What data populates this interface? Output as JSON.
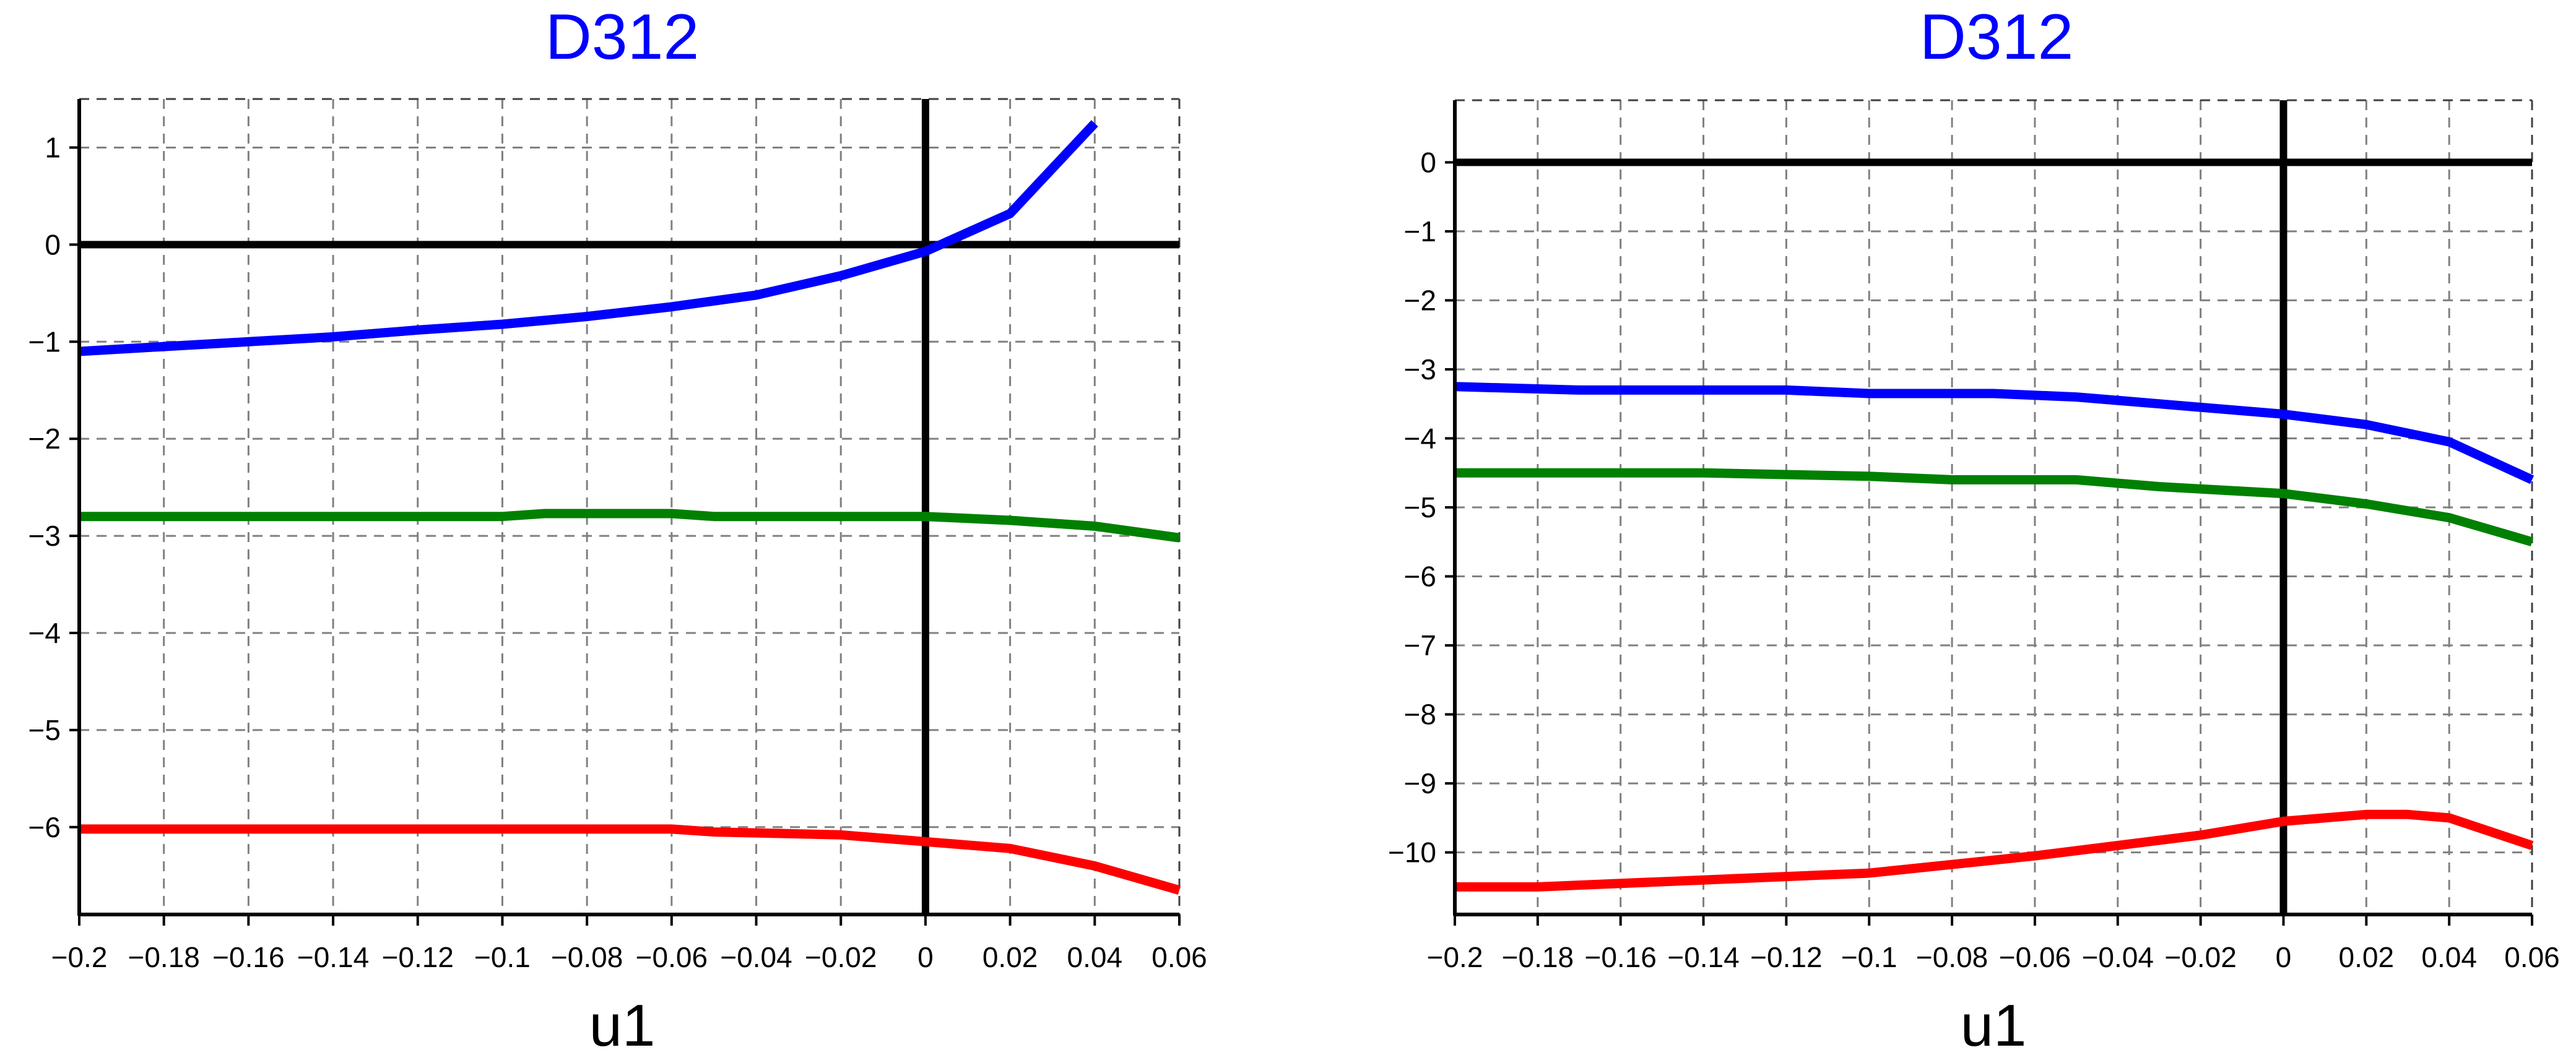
{
  "chart_data": [
    {
      "type": "line",
      "title": "D312",
      "xlabel": "u1",
      "ylabel": "",
      "xlim": [
        -0.2,
        0.06
      ],
      "ylim": [
        -6.9,
        1.5
      ],
      "grid": true,
      "x_ticks": [
        "−0.2",
        "−0.18",
        "−0.16",
        "−0.14",
        "−0.12",
        "−0.1",
        "−0.08",
        "−0.06",
        "−0.04",
        "−0.02",
        "0",
        "0.02",
        "0.04",
        "0.06"
      ],
      "x_tick_values": [
        -0.2,
        -0.18,
        -0.16,
        -0.14,
        -0.12,
        -0.1,
        -0.08,
        -0.06,
        -0.04,
        -0.02,
        0,
        0.02,
        0.04,
        0.06
      ],
      "y_ticks": [
        "1",
        "0",
        "−1",
        "−2",
        "−3",
        "−4",
        "−5",
        "−6"
      ],
      "y_tick_values": [
        1,
        0,
        -1,
        -2,
        -3,
        -4,
        -5,
        -6
      ],
      "series": [
        {
          "color": "#0000ff",
          "x": [
            -0.2,
            -0.18,
            -0.16,
            -0.14,
            -0.12,
            -0.1,
            -0.08,
            -0.06,
            -0.04,
            -0.02,
            0,
            0.02,
            0.04
          ],
          "y": [
            -1.1,
            -1.05,
            -1.0,
            -0.95,
            -0.88,
            -0.82,
            -0.74,
            -0.64,
            -0.52,
            -0.32,
            -0.07,
            0.32,
            1.25
          ]
        },
        {
          "color": "#008000",
          "x": [
            -0.2,
            -0.1,
            -0.09,
            -0.06,
            -0.05,
            0,
            0.02,
            0.04,
            0.06
          ],
          "y": [
            -2.8,
            -2.8,
            -2.77,
            -2.77,
            -2.8,
            -2.8,
            -2.84,
            -2.9,
            -3.02
          ]
        },
        {
          "color": "#ff0000",
          "x": [
            -0.2,
            -0.06,
            -0.05,
            -0.02,
            0,
            0.02,
            0.04,
            0.06
          ],
          "y": [
            -6.02,
            -6.02,
            -6.05,
            -6.08,
            -6.15,
            -6.22,
            -6.4,
            -6.65
          ]
        }
      ]
    },
    {
      "type": "line",
      "title": "D312",
      "xlabel": "u1",
      "ylabel": "",
      "xlim": [
        -0.2,
        0.06
      ],
      "ylim": [
        -10.9,
        0.9
      ],
      "grid": true,
      "x_ticks": [
        "−0.2",
        "−0.18",
        "−0.16",
        "−0.14",
        "−0.12",
        "−0.1",
        "−0.08",
        "−0.06",
        "−0.04",
        "−0.02",
        "0",
        "0.02",
        "0.04",
        "0.06"
      ],
      "x_tick_values": [
        -0.2,
        -0.18,
        -0.16,
        -0.14,
        -0.12,
        -0.1,
        -0.08,
        -0.06,
        -0.04,
        -0.02,
        0,
        0.02,
        0.04,
        0.06
      ],
      "y_ticks": [
        "0",
        "−1",
        "−2",
        "−3",
        "−4",
        "−5",
        "−6",
        "−7",
        "−8",
        "−9",
        "−10"
      ],
      "y_tick_values": [
        0,
        -1,
        -2,
        -3,
        -4,
        -5,
        -6,
        -7,
        -8,
        -9,
        -10
      ],
      "series": [
        {
          "color": "#0000ff",
          "x": [
            -0.2,
            -0.17,
            -0.12,
            -0.1,
            -0.07,
            -0.05,
            -0.03,
            0,
            0.02,
            0.04,
            0.06
          ],
          "y": [
            -3.25,
            -3.3,
            -3.3,
            -3.35,
            -3.35,
            -3.4,
            -3.5,
            -3.65,
            -3.8,
            -4.05,
            -4.6
          ]
        },
        {
          "color": "#008000",
          "x": [
            -0.2,
            -0.14,
            -0.1,
            -0.08,
            -0.05,
            -0.03,
            0,
            0.02,
            0.04,
            0.06
          ],
          "y": [
            -4.5,
            -4.5,
            -4.55,
            -4.6,
            -4.6,
            -4.7,
            -4.8,
            -4.95,
            -5.15,
            -5.5
          ]
        },
        {
          "color": "#ff0000",
          "x": [
            -0.2,
            -0.18,
            -0.14,
            -0.1,
            -0.06,
            -0.04,
            -0.02,
            0,
            0.02,
            0.03,
            0.04,
            0.06
          ],
          "y": [
            -10.5,
            -10.5,
            -10.4,
            -10.3,
            -10.05,
            -9.9,
            -9.75,
            -9.55,
            -9.45,
            -9.45,
            -9.5,
            -9.9
          ]
        }
      ]
    }
  ]
}
